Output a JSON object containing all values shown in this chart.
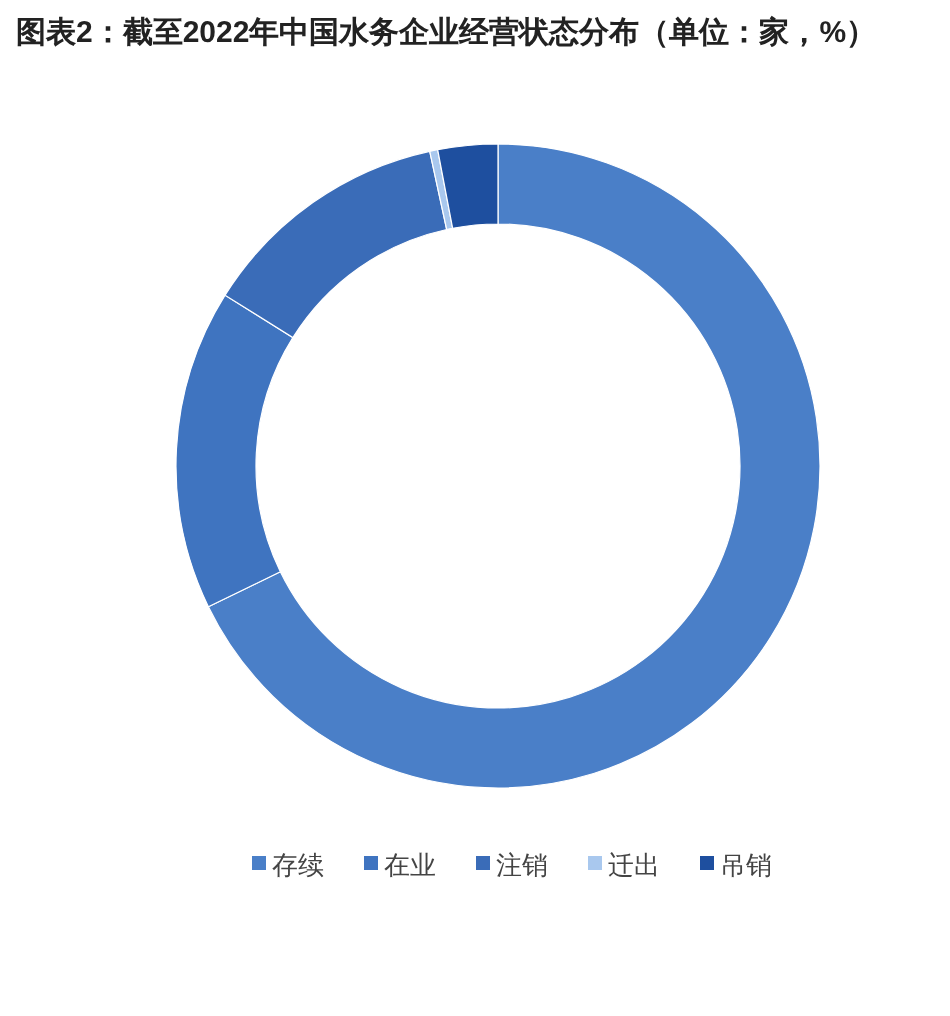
{
  "chart_data": {
    "type": "donut",
    "title": "图表2：截至2022年中国水务企业经营状态分布（单位：家，%）",
    "categories": [
      "存续",
      "在业",
      "注销",
      "迁出",
      "吊销"
    ],
    "values": [
      67.8,
      16.1,
      12.7,
      0.4,
      3.0
    ],
    "colors": [
      "#4a7fc8",
      "#3f74c0",
      "#3a6cb8",
      "#a9c8ee",
      "#1e4f9f"
    ],
    "legend": "bottom"
  }
}
